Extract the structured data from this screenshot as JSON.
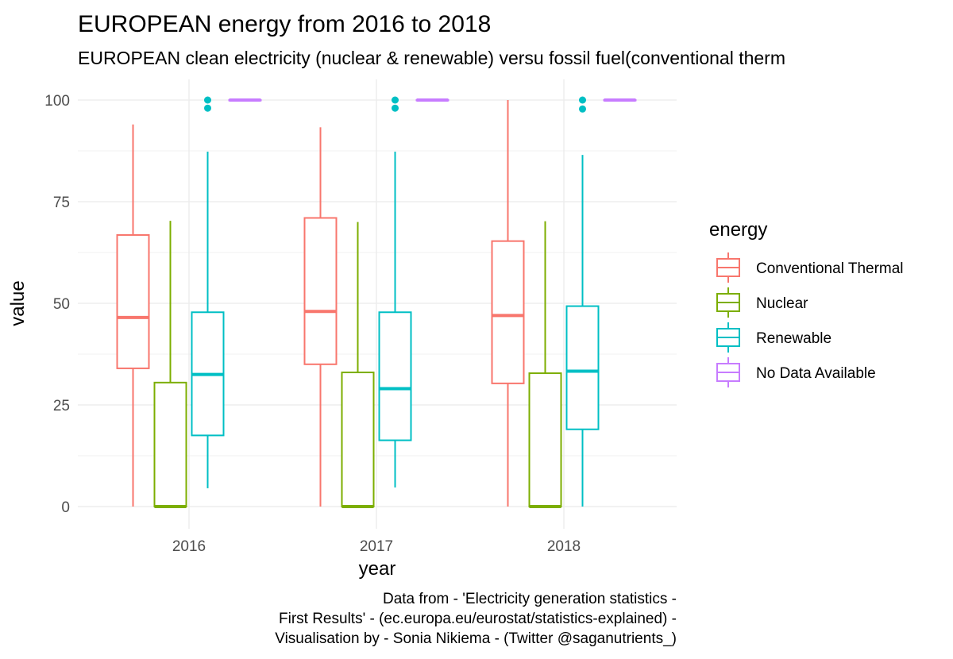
{
  "chart_data": {
    "type": "boxplot",
    "title": "EUROPEAN energy from 2016 to 2018",
    "subtitle": "EUROPEAN clean electricity (nuclear & renewable) versu fossil fuel(conventional therm",
    "xlabel": "year",
    "ylabel": "value",
    "categories": [
      "2016",
      "2017",
      "2018"
    ],
    "yticks": [
      0,
      25,
      50,
      75,
      100
    ],
    "ylim": [
      -5,
      105
    ],
    "grid": true,
    "legend": {
      "title": "energy",
      "position": "right"
    },
    "series": [
      {
        "name": "Conventional Thermal",
        "color": "#F8766D",
        "boxes": [
          {
            "min": 0,
            "q1": 34,
            "median": 46.5,
            "q3": 66.8,
            "max": 94,
            "outliers": []
          },
          {
            "min": 0,
            "q1": 35,
            "median": 48,
            "q3": 71,
            "max": 93.3,
            "outliers": []
          },
          {
            "min": 0,
            "q1": 30.3,
            "median": 47,
            "q3": 65.3,
            "max": 100,
            "outliers": []
          }
        ]
      },
      {
        "name": "Nuclear",
        "color": "#7CAE00",
        "boxes": [
          {
            "min": 0,
            "q1": 0,
            "median": 0,
            "q3": 30.5,
            "max": 70.3,
            "outliers": []
          },
          {
            "min": 0,
            "q1": 0,
            "median": 0,
            "q3": 33,
            "max": 70,
            "outliers": []
          },
          {
            "min": 0,
            "q1": 0,
            "median": 0,
            "q3": 32.8,
            "max": 70.2,
            "outliers": []
          }
        ]
      },
      {
        "name": "Renewable",
        "color": "#00BFC4",
        "boxes": [
          {
            "min": 4.5,
            "q1": 17.5,
            "median": 32.5,
            "q3": 47.8,
            "max": 87.3,
            "outliers": [
              98,
              100
            ]
          },
          {
            "min": 4.7,
            "q1": 16.3,
            "median": 29,
            "q3": 47.8,
            "max": 87.3,
            "outliers": [
              98,
              100
            ]
          },
          {
            "min": 0,
            "q1": 19,
            "median": 33.3,
            "q3": 49.3,
            "max": 86.5,
            "outliers": [
              97.8,
              100
            ]
          }
        ]
      },
      {
        "name": "No Data Available",
        "color": "#C77CFF",
        "boxes": [
          {
            "min": 100,
            "q1": 100,
            "median": 100,
            "q3": 100,
            "max": 100,
            "outliers": []
          },
          {
            "min": 100,
            "q1": 100,
            "median": 100,
            "q3": 100,
            "max": 100,
            "outliers": []
          },
          {
            "min": 100,
            "q1": 100,
            "median": 100,
            "q3": 100,
            "max": 100,
            "outliers": []
          }
        ]
      }
    ],
    "caption": [
      "Data from - 'Electricity generation statistics -",
      "First Results' - (ec.europa.eu/eurostat/statistics-explained) -",
      "Visualisation by - Sonia Nikiema - (Twitter @saganutrients_)"
    ]
  }
}
